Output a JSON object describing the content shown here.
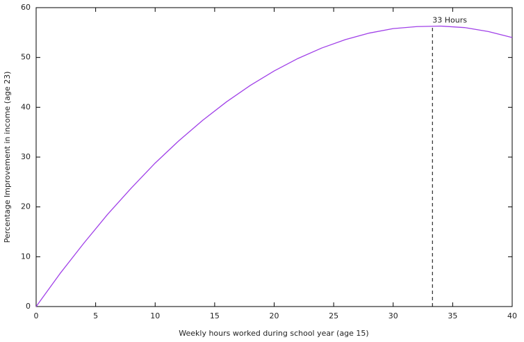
{
  "chart_data": {
    "type": "line",
    "xlabel": "Weekly hours worked during school year (age 15)",
    "ylabel": "Percentage Improvement in income (age 23)",
    "x": [
      0,
      2,
      4,
      6,
      8,
      10,
      12,
      14,
      16,
      18,
      20,
      22,
      24,
      26,
      28,
      30,
      32,
      34,
      36,
      38,
      40
    ],
    "values": [
      0,
      6.6,
      12.7,
      18.5,
      23.8,
      28.8,
      33.3,
      37.4,
      41.1,
      44.4,
      47.3,
      49.8,
      51.9,
      53.6,
      54.9,
      55.8,
      56.2,
      56.3,
      56.0,
      55.2,
      54.0
    ],
    "color": "#a040e8",
    "xlim": [
      0,
      40
    ],
    "ylim": [
      0,
      60
    ],
    "xticks": [
      0,
      5,
      10,
      15,
      20,
      25,
      30,
      35,
      40
    ],
    "yticks": [
      0,
      10,
      20,
      30,
      40,
      50,
      60
    ],
    "annotations": [
      {
        "text": "33 Hours",
        "x": 33.3,
        "y": 56.3
      }
    ]
  }
}
